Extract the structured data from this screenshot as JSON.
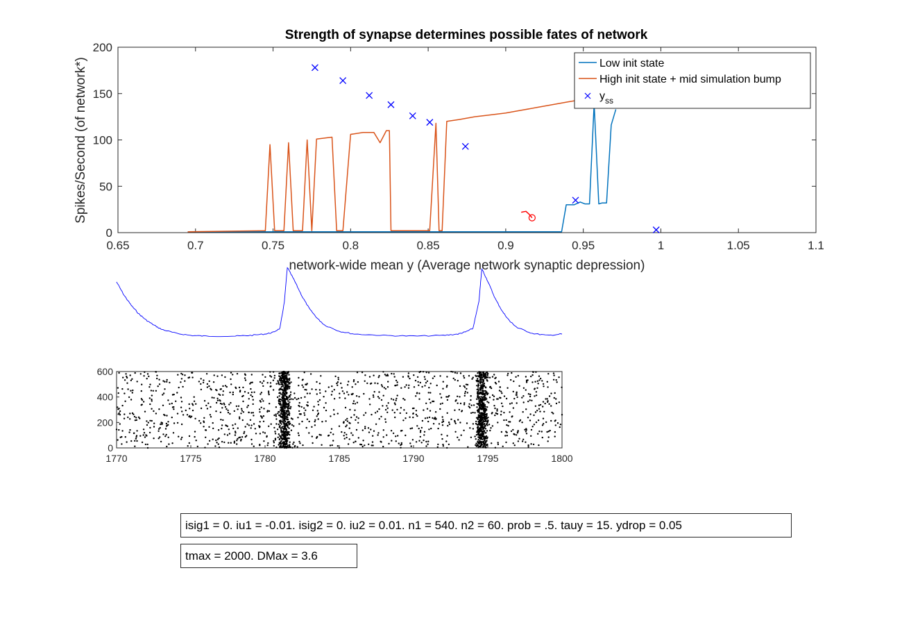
{
  "chart_data": [
    {
      "type": "line",
      "title": "Strength of synapse determines possible fates of network",
      "xlabel": "network-wide mean y (Average network synaptic depression)",
      "ylabel": "Spikes/Second (of network*)",
      "xlim": [
        0.65,
        1.1
      ],
      "ylim": [
        0,
        200
      ],
      "xticks": [
        "0.65",
        "0.7",
        "0.75",
        "0.8",
        "0.85",
        "0.9",
        "0.95",
        "1",
        "1.05",
        "1.1"
      ],
      "yticks": [
        "0",
        "50",
        "100",
        "150",
        "200"
      ],
      "legend_position": "top-right",
      "legend": [
        "Low init state",
        "High init state + mid simulation bump",
        "y",
        "ss"
      ],
      "series": [
        {
          "name": "Low init state",
          "color": "#0072BD",
          "x": [
            0.695,
            0.75,
            0.8,
            0.85,
            0.9,
            0.936,
            0.939,
            0.944,
            0.948,
            0.951,
            0.954,
            0.957,
            0.96,
            0.962,
            0.965,
            0.968,
            0.971
          ],
          "y": [
            1,
            1,
            1,
            1,
            1,
            1,
            30,
            30,
            33,
            31,
            31,
            139,
            31,
            32,
            32,
            116,
            133
          ]
        },
        {
          "name": "High init state + mid simulation bump",
          "color": "#D95319",
          "x": [
            0.695,
            0.745,
            0.748,
            0.751,
            0.754,
            0.757,
            0.76,
            0.763,
            0.766,
            0.769,
            0.772,
            0.775,
            0.778,
            0.788,
            0.791,
            0.795,
            0.8,
            0.808,
            0.814,
            0.815,
            0.819,
            0.823,
            0.825,
            0.826,
            0.84,
            0.851,
            0.855,
            0.857,
            0.859,
            0.862,
            0.87,
            0.88,
            0.89,
            0.9,
            0.91,
            0.92,
            0.93,
            0.94,
            0.947
          ],
          "y": [
            1,
            2,
            95,
            2,
            2,
            2,
            97,
            2,
            2,
            2,
            100,
            2,
            101,
            103,
            2,
            2,
            106,
            108,
            108,
            108,
            97,
            110,
            110,
            2,
            2,
            2,
            118,
            2,
            2,
            120,
            122,
            125,
            127,
            129,
            132,
            135,
            138,
            141,
            143
          ]
        },
        {
          "name": "y_ss",
          "type": "scatter",
          "marker": "x",
          "color": "#0000FF",
          "x": [
            0.777,
            0.795,
            0.812,
            0.826,
            0.84,
            0.851,
            0.874,
            0.945,
            0.997
          ],
          "y": [
            178,
            164,
            148,
            138,
            126,
            119,
            93,
            35,
            3
          ]
        },
        {
          "name": "trajectory",
          "color": "#FF0000",
          "x": [
            0.91,
            0.913,
            0.915,
            0.917
          ],
          "y": [
            22,
            23,
            20,
            16
          ]
        },
        {
          "name": "current state",
          "type": "scatter",
          "marker": "o",
          "color": "#FF0000",
          "x": [
            0.917
          ],
          "y": [
            16
          ]
        }
      ]
    },
    {
      "type": "line",
      "title": "",
      "xlim": [
        1770,
        1800
      ],
      "axes_visible": false,
      "series": [
        {
          "color": "#0000FF",
          "x": [
            1770,
            1770.5,
            1771,
            1771.5,
            1772,
            1772.5,
            1773,
            1774,
            1775,
            1776,
            1778,
            1779,
            1780,
            1780.5,
            1781,
            1781.3,
            1781.5,
            1782,
            1782.5,
            1783,
            1783.5,
            1784,
            1785,
            1786,
            1788,
            1790,
            1792,
            1793,
            1793.5,
            1794,
            1794.4,
            1794.6,
            1795,
            1795.5,
            1796,
            1796.5,
            1797,
            1798,
            1799,
            1800
          ],
          "y": [
            0.79,
            0.6,
            0.45,
            0.33,
            0.24,
            0.17,
            0.11,
            0.05,
            0.02,
            0.01,
            0.01,
            0.02,
            0.04,
            0.06,
            0.12,
            0.5,
            1.0,
            0.8,
            0.58,
            0.4,
            0.27,
            0.17,
            0.08,
            0.04,
            0.02,
            0.01,
            0.02,
            0.04,
            0.07,
            0.12,
            0.5,
            0.98,
            0.8,
            0.55,
            0.36,
            0.22,
            0.13,
            0.05,
            0.02,
            0.04
          ]
        }
      ]
    },
    {
      "type": "scatter",
      "title": "",
      "xlim": [
        1770,
        1800
      ],
      "ylim": [
        0,
        600
      ],
      "xticks": [
        "1770",
        "1775",
        "1780",
        "1785",
        "1790",
        "1795",
        "1800"
      ],
      "yticks": [
        "0",
        "200",
        "400",
        "600"
      ],
      "series": [
        {
          "color": "#000000",
          "points_per_second": 14,
          "bursts": [
            {
              "t": 1781.3,
              "count": 190
            },
            {
              "t": 1794.6,
              "count": 190
            }
          ]
        }
      ]
    }
  ],
  "params": {
    "line1": "isig1 = 0. iu1 = -0.01. isig2 = 0. iu2 = 0.01. n1 = 540. n2 = 60. prob = .5. tauy = 15. ydrop = 0.05",
    "line2": "tmax = 2000. DMax = 3.6"
  }
}
